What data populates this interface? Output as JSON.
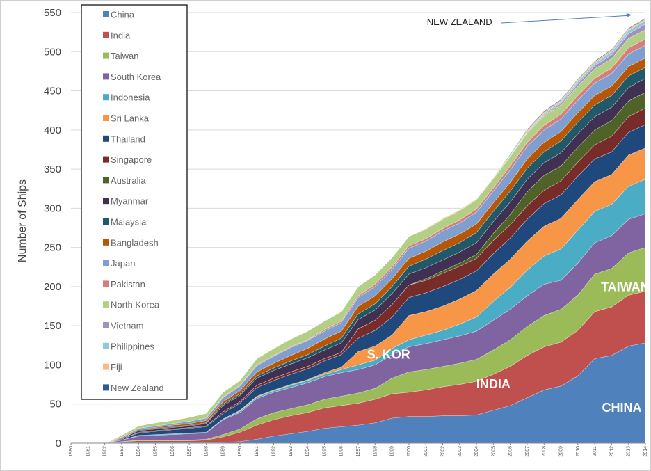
{
  "chart_data": {
    "type": "area",
    "stacked": true,
    "ylabel": "Number of Ships",
    "xlabel": "",
    "ylim": [
      0,
      550
    ],
    "yticks": [
      0,
      50,
      100,
      150,
      200,
      250,
      300,
      350,
      400,
      450,
      500,
      550
    ],
    "x": [
      1980,
      1981,
      1982,
      1983,
      1984,
      1985,
      1986,
      1987,
      1988,
      1989,
      1990,
      1991,
      1992,
      1993,
      1994,
      1995,
      1996,
      1997,
      1998,
      1999,
      2000,
      2001,
      2002,
      2003,
      2004,
      2005,
      2006,
      2007,
      2008,
      2009,
      2010,
      2011,
      2012,
      2013,
      2014
    ],
    "x_labels": [
      "1980",
      "1981",
      "1982",
      "1983",
      "1984",
      "1985",
      "1986",
      "1987",
      "1988",
      "1989",
      "1990",
      "1991",
      "1992",
      "1993",
      "1994",
      "1995",
      "1996",
      "1997",
      "1998",
      "1999",
      "2000",
      "2001",
      "2002",
      "2003",
      "2004",
      "2005",
      "2006",
      "2007",
      "2008",
      "2009",
      "2010",
      "2011",
      "2012",
      "2013",
      "2014"
    ],
    "legend_position": "top-left",
    "series": [
      {
        "name": "China",
        "color": "#4f81bd",
        "values": [
          0,
          0,
          0,
          1,
          1,
          1,
          1,
          1,
          1,
          1,
          2,
          5,
          9,
          12,
          15,
          19,
          21,
          23,
          26,
          32,
          34,
          34,
          35,
          35,
          36,
          42,
          48,
          58,
          68,
          73,
          86,
          108,
          112,
          124,
          128
        ]
      },
      {
        "name": "India",
        "color": "#c0504d",
        "values": [
          0,
          0,
          0,
          1,
          2,
          2,
          2,
          2,
          3,
          7,
          12,
          18,
          21,
          23,
          24,
          26,
          27,
          28,
          30,
          31,
          31,
          34,
          37,
          40,
          43,
          46,
          50,
          54,
          55,
          56,
          58,
          60,
          62,
          65,
          66
        ]
      },
      {
        "name": "Taiwan",
        "color": "#9bbb59",
        "values": [
          0,
          0,
          0,
          0,
          1,
          1,
          1,
          1,
          1,
          3,
          4,
          8,
          9,
          9,
          10,
          11,
          12,
          13,
          14,
          20,
          26,
          26,
          26,
          27,
          28,
          31,
          34,
          37,
          40,
          42,
          45,
          48,
          49,
          54,
          56
        ]
      },
      {
        "name": "South Korea",
        "color": "#8064a2",
        "values": [
          0,
          0,
          0,
          2,
          5,
          6,
          7,
          8,
          8,
          19,
          21,
          26,
          26,
          27,
          28,
          29,
          30,
          30,
          30,
          30,
          32,
          33,
          34,
          35,
          36,
          38,
          39,
          39,
          40,
          37,
          41,
          40,
          42,
          43,
          43
        ]
      },
      {
        "name": "Indonesia",
        "color": "#4bacc6",
        "values": [
          0,
          0,
          0,
          0,
          1,
          1,
          1,
          1,
          1,
          1,
          2,
          2,
          2,
          3,
          3,
          3,
          4,
          6,
          6,
          8,
          9,
          11,
          12,
          15,
          18,
          24,
          28,
          33,
          36,
          40,
          42,
          40,
          40,
          42,
          44
        ]
      },
      {
        "name": "Sri Lanka",
        "color": "#f79646",
        "values": [
          0,
          0,
          0,
          0,
          0,
          0,
          0,
          0,
          0,
          0,
          1,
          1,
          1,
          1,
          1,
          2,
          3,
          17,
          18,
          17,
          31,
          30,
          31,
          32,
          34,
          35,
          36,
          37,
          38,
          39,
          39,
          38,
          38,
          40,
          40
        ]
      },
      {
        "name": "Thailand",
        "color": "#1f497d",
        "values": [
          0,
          0,
          0,
          1,
          3,
          4,
          5,
          6,
          7,
          7,
          9,
          11,
          12,
          13,
          14,
          15,
          16,
          17,
          20,
          23,
          23,
          24,
          25,
          25,
          25,
          26,
          27,
          28,
          29,
          30,
          30,
          29,
          29,
          29,
          30
        ]
      },
      {
        "name": "Singapore",
        "color": "#772c2a",
        "values": [
          0,
          0,
          0,
          0,
          1,
          1,
          1,
          1,
          1,
          2,
          2,
          3,
          3,
          3,
          3,
          3,
          3,
          12,
          13,
          16,
          16,
          16,
          17,
          17,
          16,
          17,
          17,
          17,
          17,
          18,
          18,
          18,
          20,
          20,
          21
        ]
      },
      {
        "name": "Australia",
        "color": "#4f6228",
        "values": [
          0,
          0,
          0,
          0,
          0,
          0,
          0,
          0,
          0,
          0,
          0,
          0,
          0,
          0,
          0,
          0,
          0,
          0,
          0,
          0,
          0,
          2,
          3,
          4,
          5,
          9,
          13,
          18,
          19,
          19,
          19,
          19,
          20,
          20,
          20
        ]
      },
      {
        "name": "Myanmar",
        "color": "#403152",
        "values": [
          0,
          0,
          0,
          1,
          2,
          2,
          2,
          2,
          3,
          8,
          8,
          9,
          10,
          10,
          11,
          11,
          12,
          12,
          13,
          14,
          14,
          14,
          14,
          14,
          15,
          15,
          16,
          16,
          16,
          17,
          17,
          17,
          17,
          17,
          18
        ]
      },
      {
        "name": "Malaysia",
        "color": "#215968",
        "values": [
          0,
          0,
          0,
          0,
          1,
          1,
          1,
          1,
          1,
          2,
          2,
          3,
          3,
          4,
          4,
          5,
          6,
          7,
          8,
          9,
          10,
          11,
          12,
          12,
          13,
          13,
          14,
          14,
          14,
          15,
          15,
          15,
          15,
          15,
          14
        ]
      },
      {
        "name": "Bangladesh",
        "color": "#b65708",
        "values": [
          0,
          0,
          0,
          1,
          1,
          1,
          2,
          2,
          3,
          3,
          4,
          5,
          6,
          7,
          8,
          9,
          9,
          10,
          10,
          10,
          10,
          10,
          11,
          11,
          11,
          11,
          11,
          12,
          12,
          12,
          12,
          12,
          12,
          12,
          12
        ]
      },
      {
        "name": "Japan",
        "color": "#7f9fd0",
        "values": [
          0,
          0,
          0,
          1,
          1,
          2,
          2,
          3,
          3,
          5,
          6,
          8,
          9,
          10,
          10,
          10,
          11,
          11,
          12,
          12,
          13,
          13,
          14,
          14,
          15,
          15,
          16,
          16,
          16,
          16,
          16,
          16,
          16,
          16,
          16
        ]
      },
      {
        "name": "Pakistan",
        "color": "#d47f7e",
        "values": [
          0,
          0,
          0,
          0,
          0,
          0,
          0,
          0,
          0,
          1,
          1,
          1,
          1,
          1,
          1,
          2,
          2,
          2,
          3,
          3,
          3,
          3,
          3,
          4,
          4,
          4,
          5,
          5,
          6,
          6,
          6,
          6,
          7,
          8,
          8
        ]
      },
      {
        "name": "North Korea",
        "color": "#b3cf86",
        "values": [
          0,
          0,
          0,
          2,
          3,
          4,
          4,
          5,
          6,
          6,
          6,
          8,
          9,
          10,
          11,
          11,
          12,
          12,
          12,
          12,
          12,
          12,
          12,
          12,
          12,
          12,
          12,
          12,
          12,
          12,
          12,
          12,
          12,
          12,
          12
        ]
      },
      {
        "name": "Vietnam",
        "color": "#a390c1",
        "values": [
          0,
          0,
          0,
          0,
          0,
          0,
          0,
          0,
          0,
          0,
          0,
          0,
          0,
          0,
          0,
          0,
          0,
          0,
          0,
          0,
          0,
          0,
          0,
          0,
          0,
          0,
          0,
          1,
          1,
          2,
          3,
          4,
          5,
          6,
          7
        ]
      },
      {
        "name": "Philippines",
        "color": "#8dcbdc",
        "values": [
          0,
          0,
          0,
          0,
          0,
          0,
          0,
          0,
          0,
          0,
          0,
          0,
          0,
          0,
          0,
          0,
          0,
          0,
          0,
          0,
          0,
          0,
          0,
          0,
          0,
          0,
          1,
          1,
          2,
          2,
          3,
          3,
          4,
          4,
          5
        ]
      },
      {
        "name": "Fiji",
        "color": "#fab884",
        "values": [
          0,
          0,
          0,
          0,
          0,
          0,
          0,
          0,
          0,
          0,
          0,
          0,
          0,
          0,
          0,
          0,
          0,
          0,
          0,
          0,
          0,
          1,
          1,
          1,
          1,
          1,
          1,
          2,
          2,
          2,
          2,
          2,
          2,
          2,
          2
        ]
      },
      {
        "name": "New Zealand",
        "color": "#2c5a92",
        "values": [
          0,
          0,
          0,
          0,
          0,
          0,
          0,
          0,
          0,
          0,
          0,
          0,
          0,
          0,
          0,
          0,
          0,
          0,
          0,
          0,
          0,
          0,
          0,
          0,
          0,
          0,
          1,
          1,
          1,
          1,
          1,
          1,
          1,
          1,
          1
        ]
      }
    ],
    "annotations": [
      {
        "text": "CHINA",
        "year": 2012.6,
        "y": 40
      },
      {
        "text": "INDIA",
        "year": 2005.0,
        "y": 70
      },
      {
        "text": "S. KOR",
        "year": 1998.8,
        "y": 108
      },
      {
        "text": "TAIWAN",
        "year": 2012.8,
        "y": 194
      },
      {
        "text": "NEW ZEALAND",
        "year": 2003.0,
        "y": 534
      }
    ]
  }
}
